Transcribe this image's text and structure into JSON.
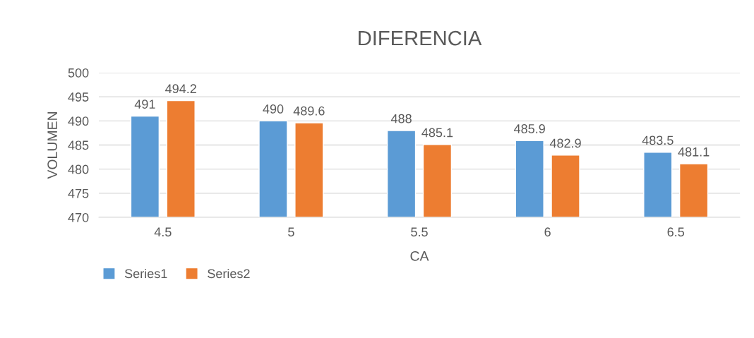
{
  "chart_data": {
    "type": "bar",
    "title": "DIFERENCIA",
    "xlabel": "CA",
    "ylabel": "VOLUMEN",
    "categories": [
      "4.5",
      "5",
      "5.5",
      "6",
      "6.5"
    ],
    "series": [
      {
        "name": "Series1",
        "color": "#5b9bd5",
        "values": [
          491,
          490,
          488,
          485.9,
          483.5
        ]
      },
      {
        "name": "Series2",
        "color": "#ed7d31",
        "values": [
          494.2,
          489.6,
          485.1,
          482.9,
          481.1
        ]
      }
    ],
    "ylim": [
      470,
      500
    ],
    "yticks": [
      470,
      475,
      480,
      485,
      490,
      495,
      500
    ],
    "grid": "y",
    "legend": "bottom left",
    "data_labels": true
  }
}
